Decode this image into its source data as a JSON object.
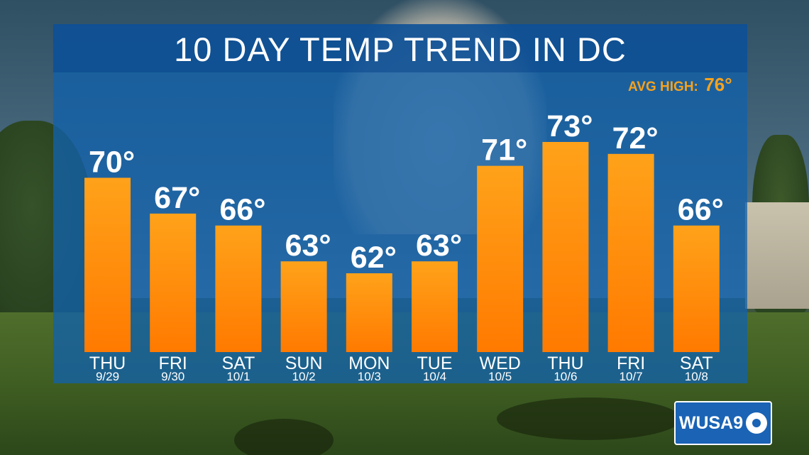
{
  "title": "10 DAY TEMP TREND IN DC",
  "avg_high": {
    "label": "AVG HIGH:",
    "value": "76°"
  },
  "logo": {
    "text": "WUSA9",
    "icon": "cbs-eye-icon"
  },
  "colors": {
    "panel": "#1262aa",
    "bar_top": "#ffa21a",
    "bar_bottom": "#ff7a00",
    "avg_text": "#f6a21d"
  },
  "chart_data": {
    "type": "bar",
    "title": "10 DAY TEMP TREND IN DC",
    "categories": [
      "THU",
      "FRI",
      "SAT",
      "SUN",
      "MON",
      "TUE",
      "WED",
      "THU",
      "FRI",
      "SAT"
    ],
    "dates": [
      "9/29",
      "9/30",
      "10/1",
      "10/2",
      "10/3",
      "10/4",
      "10/5",
      "10/6",
      "10/7",
      "10/8"
    ],
    "values": [
      70,
      67,
      66,
      63,
      62,
      63,
      71,
      73,
      72,
      66
    ],
    "value_labels": [
      "70°",
      "67°",
      "66°",
      "63°",
      "62°",
      "63°",
      "71°",
      "73°",
      "72°",
      "66°"
    ],
    "grid": false
  }
}
